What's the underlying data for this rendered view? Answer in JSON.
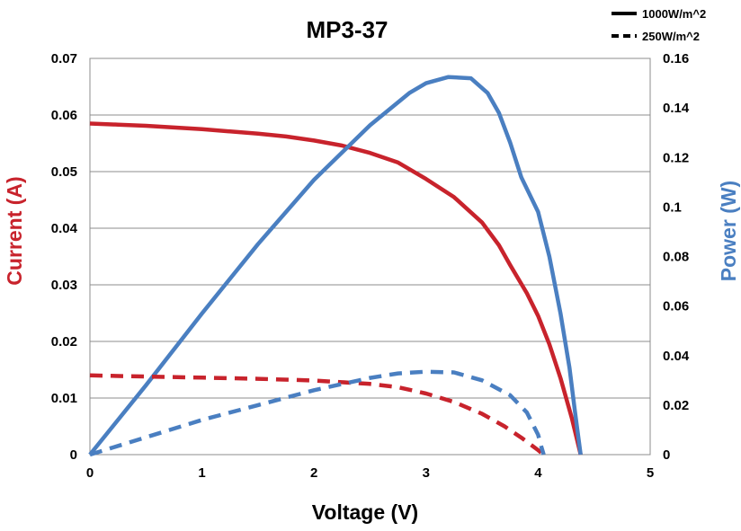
{
  "chart_data": {
    "type": "line",
    "title": "MP3-37",
    "xlabel": "Voltage (V)",
    "ylabel": "Current (A)",
    "y2label": "Power (W)",
    "xlim": [
      0,
      5
    ],
    "ylim": [
      0,
      0.07
    ],
    "y2lim": [
      0,
      0.16
    ],
    "x_ticks": [
      "0",
      "1",
      "2",
      "3",
      "4",
      "5"
    ],
    "y_ticks": [
      "0",
      "0.01",
      "0.02",
      "0.03",
      "0.04",
      "0.05",
      "0.06",
      "0.07"
    ],
    "y2_ticks": [
      "0",
      "0.02",
      "0.04",
      "0.06",
      "0.08",
      "0.1",
      "0.12",
      "0.14",
      "0.16"
    ],
    "grid": true,
    "legend_position": "top-right",
    "legend": [
      {
        "label": "1000W/m^2",
        "dash": "solid"
      },
      {
        "label": "250W/m^2",
        "dash": "dashed"
      }
    ],
    "colors": {
      "current": "#c8232c",
      "power": "#4a7fc1"
    },
    "series": [
      {
        "irradiance": "1000W/m^2",
        "quantity": "current",
        "axis": "left",
        "dash": "solid",
        "x": [
          0,
          0.25,
          0.5,
          0.75,
          1.0,
          1.25,
          1.5,
          1.75,
          2.0,
          2.25,
          2.5,
          2.75,
          3.0,
          3.25,
          3.5,
          3.65,
          3.75,
          3.9,
          4.0,
          4.1,
          4.2,
          4.3,
          4.38
        ],
        "y": [
          0.0585,
          0.0583,
          0.0581,
          0.0578,
          0.0575,
          0.0571,
          0.0567,
          0.0562,
          0.0555,
          0.0546,
          0.0533,
          0.0516,
          0.0487,
          0.0455,
          0.041,
          0.037,
          0.0335,
          0.0285,
          0.0245,
          0.0195,
          0.0135,
          0.0065,
          0.0
        ]
      },
      {
        "irradiance": "1000W/m^2",
        "quantity": "power",
        "axis": "right",
        "dash": "solid",
        "x": [
          0,
          0.5,
          1.0,
          1.5,
          2.0,
          2.5,
          2.85,
          3.0,
          3.2,
          3.4,
          3.55,
          3.65,
          3.75,
          3.85,
          4.0,
          4.1,
          4.2,
          4.28,
          4.33,
          4.38
        ],
        "y": [
          0.0,
          0.028,
          0.057,
          0.085,
          0.111,
          0.133,
          0.146,
          0.15,
          0.1525,
          0.152,
          0.146,
          0.138,
          0.126,
          0.112,
          0.098,
          0.08,
          0.057,
          0.035,
          0.017,
          0.0
        ]
      },
      {
        "irradiance": "250W/m^2",
        "quantity": "current",
        "axis": "left",
        "dash": "dashed",
        "x": [
          0,
          0.5,
          1.0,
          1.5,
          2.0,
          2.5,
          2.75,
          3.0,
          3.25,
          3.5,
          3.7,
          3.85,
          4.0,
          4.05
        ],
        "y": [
          0.014,
          0.0138,
          0.0136,
          0.0134,
          0.0131,
          0.0125,
          0.0119,
          0.0108,
          0.0093,
          0.0072,
          0.005,
          0.003,
          0.0008,
          0.0
        ]
      },
      {
        "irradiance": "250W/m^2",
        "quantity": "power",
        "axis": "right",
        "dash": "dashed",
        "x": [
          0,
          0.5,
          1.0,
          1.5,
          2.0,
          2.5,
          2.75,
          3.0,
          3.25,
          3.5,
          3.75,
          3.9,
          4.0,
          4.03,
          4.05
        ],
        "y": [
          0.0,
          0.007,
          0.014,
          0.02,
          0.026,
          0.031,
          0.0328,
          0.0335,
          0.0332,
          0.03,
          0.024,
          0.017,
          0.008,
          0.003,
          0.0
        ]
      }
    ]
  }
}
